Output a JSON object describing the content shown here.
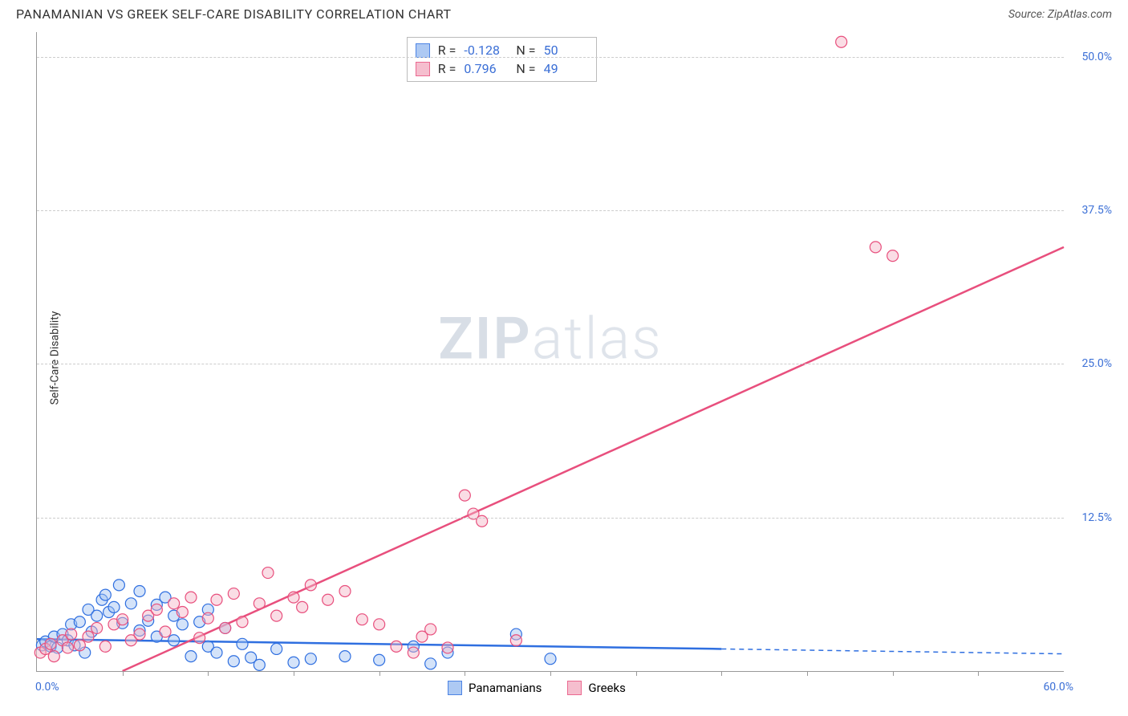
{
  "header": {
    "title": "PANAMANIAN VS GREEK SELF-CARE DISABILITY CORRELATION CHART",
    "source_label": "Source:",
    "source_name": "ZipAtlas.com"
  },
  "axes": {
    "y_label": "Self-Care Disability",
    "x_min": 0.0,
    "x_max": 60.0,
    "y_min": 0.0,
    "y_max": 52.0,
    "y_ticks": [
      12.5,
      25.0,
      37.5,
      50.0
    ],
    "y_tick_labels": [
      "12.5%",
      "25.0%",
      "37.5%",
      "50.0%"
    ],
    "x_tick_left": "0.0%",
    "x_tick_right": "60.0%",
    "x_minor_ticks": [
      5,
      10,
      15,
      20,
      25,
      30,
      35,
      40,
      45,
      50,
      55
    ]
  },
  "watermark": {
    "bold": "ZIP",
    "rest": "atlas"
  },
  "colors": {
    "blue_fill": "#9fc0f2",
    "blue_stroke": "#2f6fe0",
    "pink_fill": "#f4b3c6",
    "pink_stroke": "#e84f7d",
    "grid": "#cccccc",
    "axis": "#999999",
    "tick_text": "#3b6fd6"
  },
  "correlation_box": {
    "rows": [
      {
        "color": "blue",
        "r": "-0.128",
        "n": "50"
      },
      {
        "color": "pink",
        "r": "0.796",
        "n": "49"
      }
    ],
    "r_label": "R =",
    "n_label": "N ="
  },
  "legend": {
    "items": [
      {
        "color": "blue",
        "label": "Panamanians"
      },
      {
        "color": "pink",
        "label": "Greeks"
      }
    ]
  },
  "series": {
    "panamanians": {
      "color": "blue",
      "marker_radius": 7,
      "fill_opacity": 0.45,
      "points": [
        [
          0.3,
          2.1
        ],
        [
          0.5,
          2.4
        ],
        [
          0.8,
          2.0
        ],
        [
          1.0,
          2.8
        ],
        [
          1.2,
          1.9
        ],
        [
          1.5,
          3.0
        ],
        [
          1.8,
          2.5
        ],
        [
          2.0,
          3.8
        ],
        [
          2.2,
          2.1
        ],
        [
          2.5,
          4.0
        ],
        [
          2.8,
          1.5
        ],
        [
          3.0,
          5.0
        ],
        [
          3.2,
          3.2
        ],
        [
          3.5,
          4.5
        ],
        [
          3.8,
          5.8
        ],
        [
          4.0,
          6.2
        ],
        [
          4.2,
          4.8
        ],
        [
          4.5,
          5.2
        ],
        [
          4.8,
          7.0
        ],
        [
          5.0,
          3.9
        ],
        [
          5.5,
          5.5
        ],
        [
          6.0,
          6.5
        ],
        [
          6.0,
          3.3
        ],
        [
          6.5,
          4.1
        ],
        [
          7.0,
          2.8
        ],
        [
          7.0,
          5.4
        ],
        [
          7.5,
          6.0
        ],
        [
          8.0,
          2.5
        ],
        [
          8.0,
          4.5
        ],
        [
          8.5,
          3.8
        ],
        [
          9.0,
          1.2
        ],
        [
          9.5,
          4.0
        ],
        [
          10.0,
          2.0
        ],
        [
          10.0,
          5.0
        ],
        [
          10.5,
          1.5
        ],
        [
          11.0,
          3.5
        ],
        [
          11.5,
          0.8
        ],
        [
          12.0,
          2.2
        ],
        [
          12.5,
          1.1
        ],
        [
          13.0,
          0.5
        ],
        [
          14.0,
          1.8
        ],
        [
          15.0,
          0.7
        ],
        [
          16.0,
          1.0
        ],
        [
          18.0,
          1.2
        ],
        [
          20.0,
          0.9
        ],
        [
          22.0,
          2.0
        ],
        [
          23.0,
          0.6
        ],
        [
          24.0,
          1.5
        ],
        [
          28.0,
          3.0
        ],
        [
          30.0,
          1.0
        ]
      ],
      "trend": {
        "x1": 0,
        "y1": 2.6,
        "x2": 40,
        "y2": 1.8,
        "x2_dashed": 60,
        "y2_dashed": 1.4
      }
    },
    "greeks": {
      "color": "pink",
      "marker_radius": 7,
      "fill_opacity": 0.45,
      "points": [
        [
          0.2,
          1.5
        ],
        [
          0.5,
          1.8
        ],
        [
          0.8,
          2.2
        ],
        [
          1.0,
          1.2
        ],
        [
          1.5,
          2.5
        ],
        [
          1.8,
          1.9
        ],
        [
          2.0,
          3.0
        ],
        [
          2.5,
          2.1
        ],
        [
          3.0,
          2.8
        ],
        [
          3.5,
          3.5
        ],
        [
          4.0,
          2.0
        ],
        [
          4.5,
          3.8
        ],
        [
          5.0,
          4.2
        ],
        [
          5.5,
          2.5
        ],
        [
          6.0,
          3.0
        ],
        [
          6.5,
          4.5
        ],
        [
          7.0,
          5.0
        ],
        [
          7.5,
          3.2
        ],
        [
          8.0,
          5.5
        ],
        [
          8.5,
          4.8
        ],
        [
          9.0,
          6.0
        ],
        [
          9.5,
          2.7
        ],
        [
          10.0,
          4.3
        ],
        [
          10.5,
          5.8
        ],
        [
          11.0,
          3.5
        ],
        [
          11.5,
          6.3
        ],
        [
          12.0,
          4.0
        ],
        [
          13.0,
          5.5
        ],
        [
          13.5,
          8.0
        ],
        [
          14.0,
          4.5
        ],
        [
          15.0,
          6.0
        ],
        [
          15.5,
          5.2
        ],
        [
          16.0,
          7.0
        ],
        [
          17.0,
          5.8
        ],
        [
          18.0,
          6.5
        ],
        [
          19.0,
          4.2
        ],
        [
          20.0,
          3.8
        ],
        [
          21.0,
          2.0
        ],
        [
          22.0,
          1.5
        ],
        [
          22.5,
          2.8
        ],
        [
          23.0,
          3.4
        ],
        [
          24.0,
          1.9
        ],
        [
          25.0,
          14.3
        ],
        [
          25.5,
          12.8
        ],
        [
          26.0,
          12.2
        ],
        [
          28.0,
          2.5
        ],
        [
          47.0,
          51.2
        ],
        [
          49.0,
          34.5
        ],
        [
          50.0,
          33.8
        ]
      ],
      "trend": {
        "x1": 5,
        "y1": 0,
        "x2": 60,
        "y2": 34.5
      }
    }
  }
}
